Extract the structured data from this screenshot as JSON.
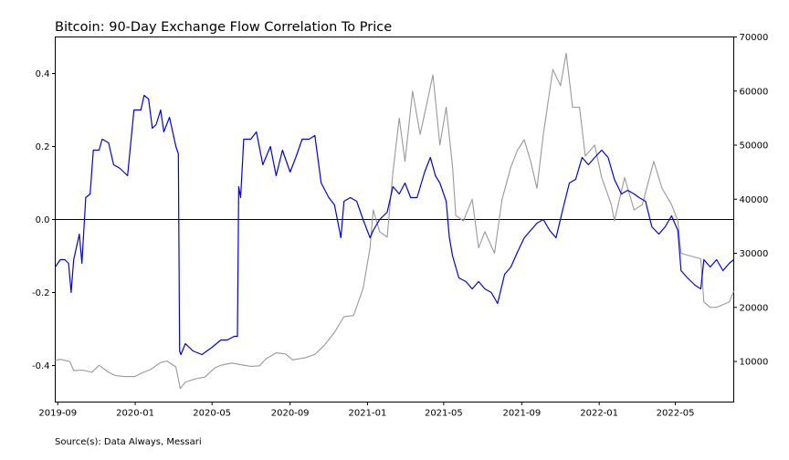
{
  "chart_data": {
    "type": "line",
    "title": "Bitcoin: 90-Day Exchange Flow Correlation To Price",
    "source": "Source(s): Data Always, Messari",
    "x_axis": {
      "type": "date",
      "range": [
        "2019-08-28",
        "2022-08-01"
      ],
      "tick_labels": [
        "2019-09",
        "2020-01",
        "2020-05",
        "2020-09",
        "2021-01",
        "2021-05",
        "2021-09",
        "2022-01",
        "2022-05"
      ]
    },
    "y_left": {
      "range": [
        -0.5,
        0.5
      ],
      "tick_labels": [
        "-0.4",
        "-0.2",
        "0.0",
        "0.2",
        "0.4"
      ],
      "zero_line": true
    },
    "y_right": {
      "range": [
        2500,
        70000
      ],
      "tick_labels": [
        "10000",
        "20000",
        "30000",
        "40000",
        "50000",
        "60000",
        "70000"
      ]
    },
    "grid": false,
    "legend": "none",
    "series": [
      {
        "axis": "left",
        "color": "#0000ee",
        "points": [
          [
            "2019-08-28",
            -0.13
          ],
          [
            "2019-09-05",
            -0.11
          ],
          [
            "2019-09-12",
            -0.11
          ],
          [
            "2019-09-18",
            -0.12
          ],
          [
            "2019-09-22",
            -0.2
          ],
          [
            "2019-09-26",
            -0.11
          ],
          [
            "2019-10-05",
            -0.04
          ],
          [
            "2019-10-09",
            -0.12
          ],
          [
            "2019-10-15",
            0.06
          ],
          [
            "2019-10-22",
            0.07
          ],
          [
            "2019-10-27",
            0.19
          ],
          [
            "2019-11-05",
            0.19
          ],
          [
            "2019-11-10",
            0.22
          ],
          [
            "2019-11-20",
            0.21
          ],
          [
            "2019-11-28",
            0.15
          ],
          [
            "2019-12-08",
            0.14
          ],
          [
            "2019-12-20",
            0.12
          ],
          [
            "2019-12-30",
            0.3
          ],
          [
            "2020-01-10",
            0.3
          ],
          [
            "2020-01-15",
            0.34
          ],
          [
            "2020-01-22",
            0.33
          ],
          [
            "2020-01-28",
            0.25
          ],
          [
            "2020-02-03",
            0.26
          ],
          [
            "2020-02-10",
            0.3
          ],
          [
            "2020-02-15",
            0.24
          ],
          [
            "2020-02-24",
            0.28
          ],
          [
            "2020-03-05",
            0.2
          ],
          [
            "2020-03-09",
            0.18
          ],
          [
            "2020-03-11",
            -0.36
          ],
          [
            "2020-03-13",
            -0.37
          ],
          [
            "2020-03-20",
            -0.34
          ],
          [
            "2020-04-01",
            -0.36
          ],
          [
            "2020-04-15",
            -0.37
          ],
          [
            "2020-05-01",
            -0.35
          ],
          [
            "2020-05-15",
            -0.33
          ],
          [
            "2020-05-25",
            -0.33
          ],
          [
            "2020-06-05",
            -0.32
          ],
          [
            "2020-06-10",
            -0.32
          ],
          [
            "2020-06-12",
            0.09
          ],
          [
            "2020-06-15",
            0.06
          ],
          [
            "2020-06-20",
            0.22
          ],
          [
            "2020-07-01",
            0.22
          ],
          [
            "2020-07-10",
            0.24
          ],
          [
            "2020-07-20",
            0.15
          ],
          [
            "2020-08-01",
            0.2
          ],
          [
            "2020-08-10",
            0.12
          ],
          [
            "2020-08-20",
            0.19
          ],
          [
            "2020-09-01",
            0.13
          ],
          [
            "2020-09-10",
            0.17
          ],
          [
            "2020-09-20",
            0.22
          ],
          [
            "2020-10-01",
            0.22
          ],
          [
            "2020-10-10",
            0.23
          ],
          [
            "2020-10-20",
            0.1
          ],
          [
            "2020-11-01",
            0.06
          ],
          [
            "2020-11-10",
            0.04
          ],
          [
            "2020-11-20",
            -0.05
          ],
          [
            "2020-11-25",
            0.05
          ],
          [
            "2020-12-05",
            0.06
          ],
          [
            "2020-12-15",
            0.05
          ],
          [
            "2020-12-25",
            0.0
          ],
          [
            "2021-01-05",
            -0.05
          ],
          [
            "2021-01-10",
            -0.03
          ],
          [
            "2021-01-20",
            0.0
          ],
          [
            "2021-02-01",
            0.02
          ],
          [
            "2021-02-10",
            0.09
          ],
          [
            "2021-02-20",
            0.07
          ],
          [
            "2021-03-01",
            0.1
          ],
          [
            "2021-03-10",
            0.06
          ],
          [
            "2021-03-20",
            0.06
          ],
          [
            "2021-04-01",
            0.13
          ],
          [
            "2021-04-10",
            0.17
          ],
          [
            "2021-04-18",
            0.12
          ],
          [
            "2021-04-25",
            0.1
          ],
          [
            "2021-05-05",
            0.05
          ],
          [
            "2021-05-10",
            -0.05
          ],
          [
            "2021-05-15",
            -0.1
          ],
          [
            "2021-05-25",
            -0.16
          ],
          [
            "2021-06-05",
            -0.17
          ],
          [
            "2021-06-15",
            -0.19
          ],
          [
            "2021-06-25",
            -0.17
          ],
          [
            "2021-07-05",
            -0.19
          ],
          [
            "2021-07-15",
            -0.2
          ],
          [
            "2021-07-25",
            -0.23
          ],
          [
            "2021-08-05",
            -0.15
          ],
          [
            "2021-08-15",
            -0.13
          ],
          [
            "2021-08-25",
            -0.09
          ],
          [
            "2021-09-05",
            -0.05
          ],
          [
            "2021-09-15",
            -0.03
          ],
          [
            "2021-09-25",
            -0.01
          ],
          [
            "2021-10-05",
            0.0
          ],
          [
            "2021-10-15",
            -0.03
          ],
          [
            "2021-10-25",
            -0.05
          ],
          [
            "2021-11-05",
            0.03
          ],
          [
            "2021-11-15",
            0.1
          ],
          [
            "2021-11-25",
            0.11
          ],
          [
            "2021-12-05",
            0.17
          ],
          [
            "2021-12-15",
            0.15
          ],
          [
            "2021-12-25",
            0.17
          ],
          [
            "2022-01-05",
            0.19
          ],
          [
            "2022-01-15",
            0.17
          ],
          [
            "2022-01-25",
            0.11
          ],
          [
            "2022-02-05",
            0.07
          ],
          [
            "2022-02-15",
            0.08
          ],
          [
            "2022-02-25",
            0.07
          ],
          [
            "2022-03-05",
            0.06
          ],
          [
            "2022-03-15",
            0.05
          ],
          [
            "2022-03-25",
            -0.02
          ],
          [
            "2022-04-05",
            -0.04
          ],
          [
            "2022-04-15",
            -0.02
          ],
          [
            "2022-04-25",
            0.01
          ],
          [
            "2022-05-05",
            -0.03
          ],
          [
            "2022-05-10",
            -0.14
          ],
          [
            "2022-05-20",
            -0.16
          ],
          [
            "2022-06-01",
            -0.18
          ],
          [
            "2022-06-10",
            -0.19
          ],
          [
            "2022-06-15",
            -0.11
          ],
          [
            "2022-06-25",
            -0.13
          ],
          [
            "2022-07-05",
            -0.11
          ],
          [
            "2022-07-15",
            -0.14
          ],
          [
            "2022-07-25",
            -0.12
          ],
          [
            "2022-08-01",
            -0.11
          ]
        ]
      },
      {
        "axis": "right",
        "color": "#999999",
        "points": [
          [
            "2019-08-28",
            10200
          ],
          [
            "2019-09-05",
            10400
          ],
          [
            "2019-09-20",
            10000
          ],
          [
            "2019-09-26",
            8300
          ],
          [
            "2019-10-10",
            8400
          ],
          [
            "2019-10-25",
            8000
          ],
          [
            "2019-11-05",
            9300
          ],
          [
            "2019-11-20",
            8000
          ],
          [
            "2019-12-01",
            7400
          ],
          [
            "2019-12-15",
            7200
          ],
          [
            "2019-12-31",
            7200
          ],
          [
            "2020-01-10",
            7800
          ],
          [
            "2020-01-25",
            8500
          ],
          [
            "2020-02-10",
            9800
          ],
          [
            "2020-02-20",
            10100
          ],
          [
            "2020-03-05",
            9000
          ],
          [
            "2020-03-12",
            5000
          ],
          [
            "2020-03-20",
            6200
          ],
          [
            "2020-04-05",
            6800
          ],
          [
            "2020-04-20",
            7100
          ],
          [
            "2020-05-05",
            8800
          ],
          [
            "2020-05-15",
            9300
          ],
          [
            "2020-06-01",
            9700
          ],
          [
            "2020-06-15",
            9400
          ],
          [
            "2020-07-01",
            9100
          ],
          [
            "2020-07-15",
            9200
          ],
          [
            "2020-07-25",
            10500
          ],
          [
            "2020-08-10",
            11600
          ],
          [
            "2020-08-25",
            11400
          ],
          [
            "2020-09-05",
            10300
          ],
          [
            "2020-09-25",
            10700
          ],
          [
            "2020-10-10",
            11300
          ],
          [
            "2020-10-25",
            13000
          ],
          [
            "2020-11-10",
            15400
          ],
          [
            "2020-11-25",
            18300
          ],
          [
            "2020-12-10",
            18500
          ],
          [
            "2020-12-25",
            23500
          ],
          [
            "2021-01-05",
            31000
          ],
          [
            "2021-01-10",
            38000
          ],
          [
            "2021-01-20",
            34000
          ],
          [
            "2021-02-01",
            33000
          ],
          [
            "2021-02-10",
            45000
          ],
          [
            "2021-02-20",
            55000
          ],
          [
            "2021-03-01",
            47000
          ],
          [
            "2021-03-13",
            60000
          ],
          [
            "2021-03-25",
            52000
          ],
          [
            "2021-04-05",
            58000
          ],
          [
            "2021-04-14",
            63000
          ],
          [
            "2021-04-25",
            50000
          ],
          [
            "2021-05-05",
            57000
          ],
          [
            "2021-05-15",
            46000
          ],
          [
            "2021-05-20",
            37000
          ],
          [
            "2021-06-01",
            36000
          ],
          [
            "2021-06-15",
            40000
          ],
          [
            "2021-06-25",
            31000
          ],
          [
            "2021-07-05",
            34000
          ],
          [
            "2021-07-20",
            30000
          ],
          [
            "2021-08-01",
            40000
          ],
          [
            "2021-08-15",
            46000
          ],
          [
            "2021-08-25",
            49000
          ],
          [
            "2021-09-05",
            51000
          ],
          [
            "2021-09-15",
            47000
          ],
          [
            "2021-09-25",
            42000
          ],
          [
            "2021-10-05",
            52000
          ],
          [
            "2021-10-20",
            64000
          ],
          [
            "2021-11-01",
            61000
          ],
          [
            "2021-11-10",
            67000
          ],
          [
            "2021-11-20",
            57000
          ],
          [
            "2021-12-01",
            57000
          ],
          [
            "2021-12-10",
            48000
          ],
          [
            "2021-12-25",
            50000
          ],
          [
            "2022-01-05",
            44000
          ],
          [
            "2022-01-20",
            39000
          ],
          [
            "2022-01-25",
            36000
          ],
          [
            "2022-02-10",
            44000
          ],
          [
            "2022-02-25",
            38000
          ],
          [
            "2022-03-10",
            39000
          ],
          [
            "2022-03-28",
            47000
          ],
          [
            "2022-04-10",
            42000
          ],
          [
            "2022-04-25",
            39000
          ],
          [
            "2022-05-05",
            36000
          ],
          [
            "2022-05-10",
            30000
          ],
          [
            "2022-05-25",
            29500
          ],
          [
            "2022-06-10",
            29000
          ],
          [
            "2022-06-15",
            21000
          ],
          [
            "2022-06-25",
            20000
          ],
          [
            "2022-07-05",
            20000
          ],
          [
            "2022-07-15",
            20500
          ],
          [
            "2022-07-25",
            21000
          ],
          [
            "2022-08-01",
            23000
          ]
        ]
      }
    ]
  }
}
